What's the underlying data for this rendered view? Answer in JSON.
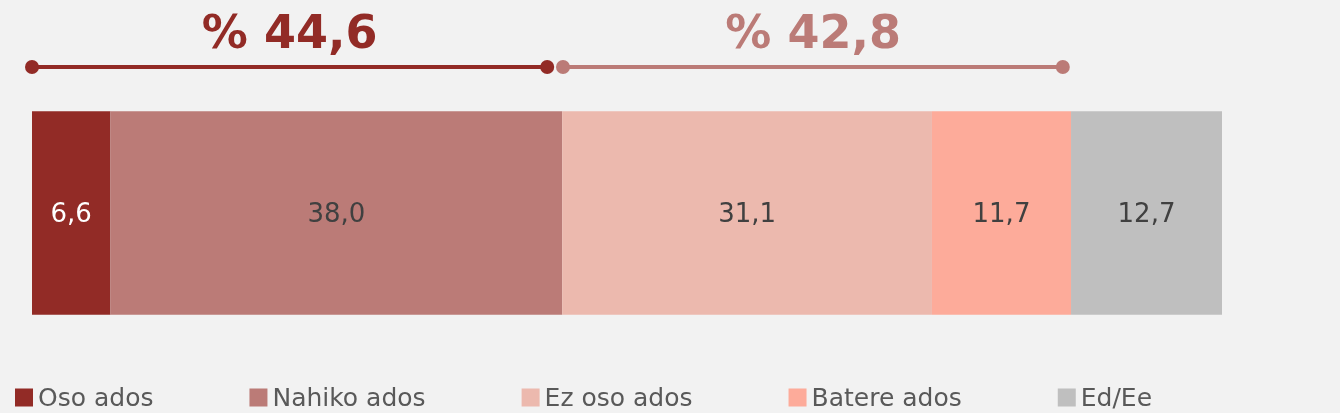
{
  "chart_data": {
    "type": "bar",
    "orientation": "horizontal",
    "stacked": true,
    "legend": "bottom",
    "categories": [
      null
    ],
    "series": [
      {
        "name": "Oso ados",
        "color": "#922b26",
        "values": [
          6.6
        ],
        "value_labels": [
          "6,6"
        ]
      },
      {
        "name": "Nahiko ados",
        "color": "#bb7b77",
        "values": [
          38.0
        ],
        "value_labels": [
          "38,0"
        ]
      },
      {
        "name": "Ez oso ados",
        "color": "#ecb9ae",
        "values": [
          31.1
        ],
        "value_labels": [
          "31,1"
        ]
      },
      {
        "name": "Batere ados",
        "color": "#fdab9a",
        "values": [
          11.7
        ],
        "value_labels": [
          "11,7"
        ]
      },
      {
        "name": "Ed/Ee",
        "color": "#bfbfbf",
        "values": [
          12.7
        ],
        "value_labels": [
          "12,7"
        ]
      }
    ],
    "annotations": [
      "% 44,6",
      "% 42,8"
    ]
  }
}
